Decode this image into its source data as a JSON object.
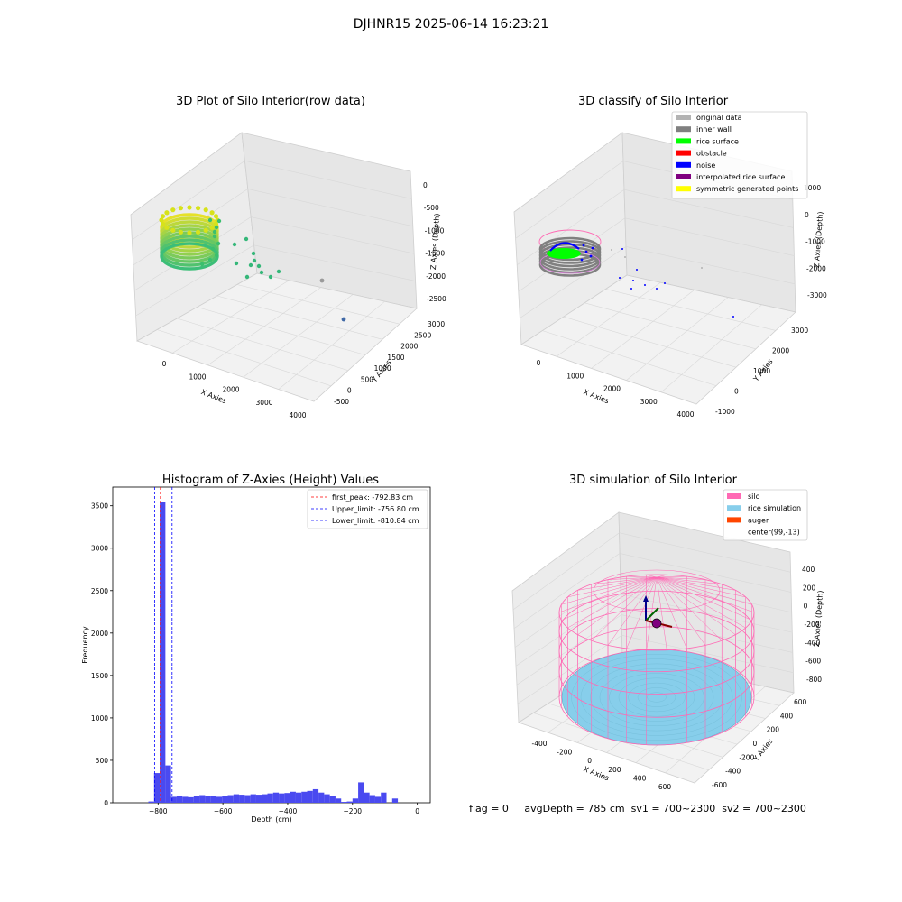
{
  "suptitle": "DJHNR15 2025-06-14 16:23:21",
  "status_line": "flag = 0     avgDepth = 785 cm  sv1 = 700~2300  sv2 = 700~2300",
  "colors": {
    "original": "#b3b3b3",
    "inner_wall": "#808080",
    "rice_surface": "#00ff00",
    "obstacle": "#ff0000",
    "noise": "#0000ff",
    "interp": "#800080",
    "symmetric": "#ffff00",
    "silo": "#ff69b4",
    "rice_sim": "#87ceeb",
    "auger": "#ff4500",
    "hist_bar": "#4a4af0"
  },
  "plot1": {
    "title": "3D Plot of Silo Interior(row data)",
    "xlabel": "X Axies",
    "ylabel": "Y Axies",
    "zlabel": "Z Axies (Depth)",
    "xticks": [
      "0",
      "1000",
      "2000",
      "3000",
      "4000"
    ],
    "yticks": [
      "-500",
      "0",
      "500",
      "1000",
      "1500",
      "2000",
      "2500",
      "3000"
    ],
    "zticks": [
      "0",
      "-500",
      "-1000",
      "-1500",
      "-2000",
      "-2500"
    ]
  },
  "plot2": {
    "title": "3D classify of Silo Interior",
    "xlabel": "X Axies",
    "ylabel": "Y Axies",
    "zlabel": "Z Axies (Depth)",
    "xticks": [
      "0",
      "1000",
      "2000",
      "3000",
      "4000"
    ],
    "yticks": [
      "-1000",
      "0",
      "1000",
      "2000",
      "3000"
    ],
    "zticks": [
      "1000",
      "0",
      "-1000",
      "-2000",
      "-3000"
    ],
    "legend": [
      {
        "label": "original data",
        "color": "#b3b3b3"
      },
      {
        "label": "inner wall",
        "color": "#808080"
      },
      {
        "label": "rice surface",
        "color": "#00ff00"
      },
      {
        "label": "obstacle",
        "color": "#ff0000"
      },
      {
        "label": "noise",
        "color": "#0000ff"
      },
      {
        "label": "interpolated rice surface",
        "color": "#800080"
      },
      {
        "label": "symmetric generated points",
        "color": "#ffff00"
      }
    ]
  },
  "plot4": {
    "title": "3D simulation of Silo Interior",
    "xlabel": "X Axies",
    "ylabel": "Y Axies",
    "zlabel": "Z Axies (Depth)",
    "xticks": [
      "-400",
      "-200",
      "0",
      "200",
      "400",
      "600"
    ],
    "yticks": [
      "-600",
      "-400",
      "-200",
      "0",
      "200",
      "400",
      "600"
    ],
    "zticks": [
      "400",
      "200",
      "0",
      "-200",
      "-400",
      "-600",
      "-800"
    ],
    "legend": [
      {
        "label": "silo",
        "color": "#ff69b4"
      },
      {
        "label": "rice simulation",
        "color": "#87ceeb"
      },
      {
        "label": "auger",
        "color": "#ff4500"
      },
      {
        "label": "center(99,-13)",
        "color": ""
      }
    ]
  },
  "chart_data": [
    {
      "type": "scatter",
      "title": "3D Plot of Silo Interior(row data)",
      "xlabel": "X Axies",
      "ylabel": "Y Axies",
      "zlabel": "Z Axies (Depth)",
      "xlim": [
        -500,
        4200
      ],
      "ylim": [
        -700,
        3400
      ],
      "zlim": [
        -2700,
        100
      ]
    },
    {
      "type": "scatter",
      "title": "3D classify of Silo Interior",
      "xlabel": "X Axies",
      "ylabel": "Y Axies",
      "zlabel": "Z Axies (Depth)",
      "xlim": [
        -500,
        4200
      ],
      "ylim": [
        -1100,
        3400
      ],
      "zlim": [
        -3300,
        1100
      ],
      "series": [
        {
          "name": "original data"
        },
        {
          "name": "inner wall"
        },
        {
          "name": "rice surface"
        },
        {
          "name": "obstacle"
        },
        {
          "name": "noise"
        },
        {
          "name": "interpolated rice surface"
        },
        {
          "name": "symmetric generated points"
        }
      ]
    },
    {
      "type": "bar",
      "title": "Histogram of Z-Axies (Height) Values",
      "xlabel": "Depth (cm)",
      "ylabel": "Frequency",
      "xlim": [
        -940,
        40
      ],
      "ylim": [
        0,
        3720
      ],
      "xticks": [
        -800,
        -600,
        -400,
        -200,
        0
      ],
      "yticks": [
        0,
        500,
        1000,
        1500,
        2000,
        2500,
        3000,
        3500
      ],
      "bin_width": 17.5,
      "bin_starts": [
        -830,
        -812.5,
        -795,
        -777.5,
        -760,
        -742.5,
        -725,
        -707.5,
        -690,
        -672.5,
        -655,
        -637.5,
        -620,
        -602.5,
        -585,
        -567.5,
        -550,
        -532.5,
        -515,
        -497.5,
        -480,
        -462.5,
        -445,
        -427.5,
        -410,
        -392.5,
        -375,
        -357.5,
        -340,
        -322.5,
        -305,
        -287.5,
        -270,
        -252.5,
        -235,
        -217.5,
        -200,
        -182.5,
        -165,
        -147.5,
        -130,
        -112.5,
        -95,
        -77.5,
        -60,
        -42.5,
        -25,
        -7.5
      ],
      "values": [
        15,
        350,
        3540,
        440,
        70,
        85,
        70,
        65,
        80,
        90,
        80,
        75,
        70,
        80,
        90,
        100,
        95,
        90,
        100,
        95,
        100,
        110,
        120,
        110,
        115,
        130,
        120,
        130,
        140,
        160,
        120,
        100,
        80,
        50,
        10,
        15,
        50,
        240,
        120,
        90,
        70,
        120,
        0,
        50,
        0,
        0,
        0,
        0
      ],
      "lines": [
        {
          "name": "first_peak: -792.83 cm",
          "value": -792.83,
          "color": "#ff0000"
        },
        {
          "name": "Upper_limit: -756.80 cm",
          "value": -756.8,
          "color": "#0000ff"
        },
        {
          "name": "Lower_limit: -810.84 cm",
          "value": -810.84,
          "color": "#0000ff"
        }
      ]
    },
    {
      "type": "scatter",
      "title": "3D simulation of Silo Interior",
      "xlabel": "X Axies",
      "ylabel": "Y Axies",
      "zlabel": "Z Axies (Depth)",
      "xlim": [
        -500,
        700
      ],
      "ylim": [
        -700,
        700
      ],
      "zlim": [
        -900,
        450
      ],
      "series": [
        {
          "name": "silo"
        },
        {
          "name": "rice simulation"
        },
        {
          "name": "auger"
        },
        {
          "name": "center(99,-13)"
        }
      ]
    }
  ]
}
